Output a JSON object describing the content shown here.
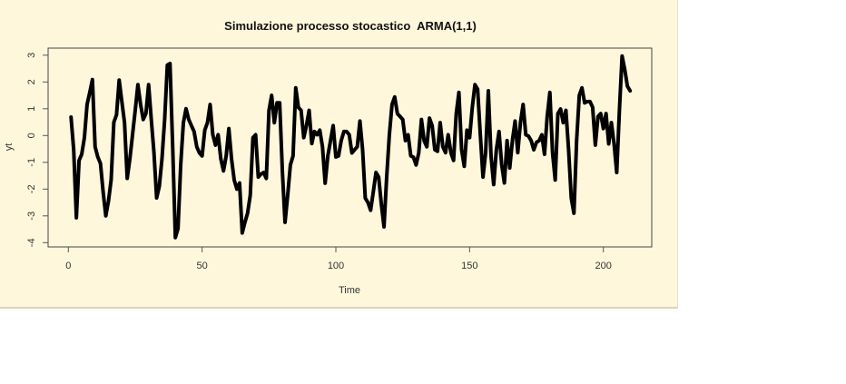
{
  "chart_data": {
    "type": "line",
    "title": "Simulazione processo stocastico  ARMA(1,1)",
    "xlabel": "Time",
    "ylabel": "yt",
    "xlim": [
      -5,
      218
    ],
    "ylim": [
      -4.1,
      3.1
    ],
    "x_ticks": [
      0,
      50,
      100,
      150,
      200
    ],
    "x_tick_labels": [
      "0",
      "50",
      "100",
      "150",
      "200"
    ],
    "y_ticks": [
      -4,
      -3,
      -2,
      -1,
      0,
      1,
      2,
      3
    ],
    "y_tick_labels": [
      "-4",
      "-3",
      "-2",
      "-1",
      "0",
      "1",
      "2",
      "3"
    ],
    "grid": false,
    "legend": "none",
    "line_color": "#000000",
    "background_color": "#FFF7DC",
    "series": [
      {
        "name": "yt",
        "x_start": 1,
        "x_step": 1,
        "values": [
          0.69,
          -0.53,
          -3.07,
          -0.93,
          -0.7,
          -0.08,
          1.16,
          1.61,
          2.09,
          -0.42,
          -0.8,
          -1.04,
          -2.1,
          -3.0,
          -2.45,
          -1.65,
          0.49,
          0.77,
          2.07,
          1.27,
          0.48,
          -1.6,
          -0.87,
          0.04,
          0.94,
          1.9,
          1.16,
          0.6,
          0.82,
          1.9,
          0.6,
          -0.63,
          -2.33,
          -1.9,
          -0.87,
          0.6,
          2.63,
          2.69,
          -0.42,
          -3.81,
          -3.47,
          -1.1,
          0.48,
          1.0,
          0.6,
          0.37,
          0.15,
          -0.42,
          -0.65,
          -0.76,
          0.2,
          0.48,
          1.16,
          0.03,
          -0.36,
          0.03,
          -0.87,
          -1.32,
          -0.76,
          0.26,
          -0.87,
          -1.66,
          -2.0,
          -1.77,
          -3.64,
          -3.24,
          -2.9,
          -2.23,
          -0.08,
          0.03,
          -1.55,
          -1.44,
          -1.38,
          -1.6,
          0.94,
          1.5,
          0.48,
          1.22,
          1.22,
          -1.32,
          -3.24,
          -2.23,
          -1.1,
          -0.76,
          1.78,
          1.05,
          0.94,
          -0.08,
          0.37,
          0.94,
          -0.3,
          0.15,
          0.03,
          0.2,
          -0.42,
          -1.78,
          -0.76,
          -0.19,
          0.37,
          -0.8,
          -0.76,
          -0.19,
          0.15,
          0.15,
          0.03,
          -0.65,
          -0.53,
          -0.42,
          0.54,
          -0.53,
          -2.34,
          -2.5,
          -2.79,
          -2.1,
          -1.38,
          -1.55,
          -2.56,
          -3.41,
          -1.55,
          0.03,
          1.16,
          1.44,
          0.82,
          0.71,
          0.6,
          -0.19,
          0.03,
          -0.76,
          -0.81,
          -1.1,
          -0.64,
          0.6,
          -0.19,
          -0.42,
          0.65,
          0.37,
          -0.53,
          -0.59,
          0.48,
          -0.42,
          -0.64,
          0.03,
          -0.64,
          -0.93,
          0.82,
          1.61,
          -0.53,
          -1.15,
          0.2,
          -0.08,
          1.05,
          1.9,
          1.73,
          0.03,
          -1.55,
          -0.64,
          1.67,
          -0.76,
          -1.83,
          -0.53,
          0.15,
          -1.1,
          -1.77,
          -0.19,
          -1.21,
          -0.19,
          0.54,
          -0.64,
          0.48,
          1.16,
          0.03,
          -0.02,
          -0.19,
          -0.53,
          -0.25,
          -0.19,
          0.03,
          -0.7,
          0.71,
          1.61,
          -0.64,
          -1.66,
          0.82,
          0.99,
          0.48,
          0.94,
          -0.53,
          -2.34,
          -2.9,
          -0.19,
          1.5,
          1.78,
          1.22,
          1.27,
          1.27,
          1.05,
          -0.36,
          0.71,
          0.82,
          0.26,
          0.82,
          -0.31,
          0.48,
          -0.31,
          -1.38,
          0.94,
          2.97,
          2.46,
          1.84,
          1.67
        ]
      }
    ]
  }
}
